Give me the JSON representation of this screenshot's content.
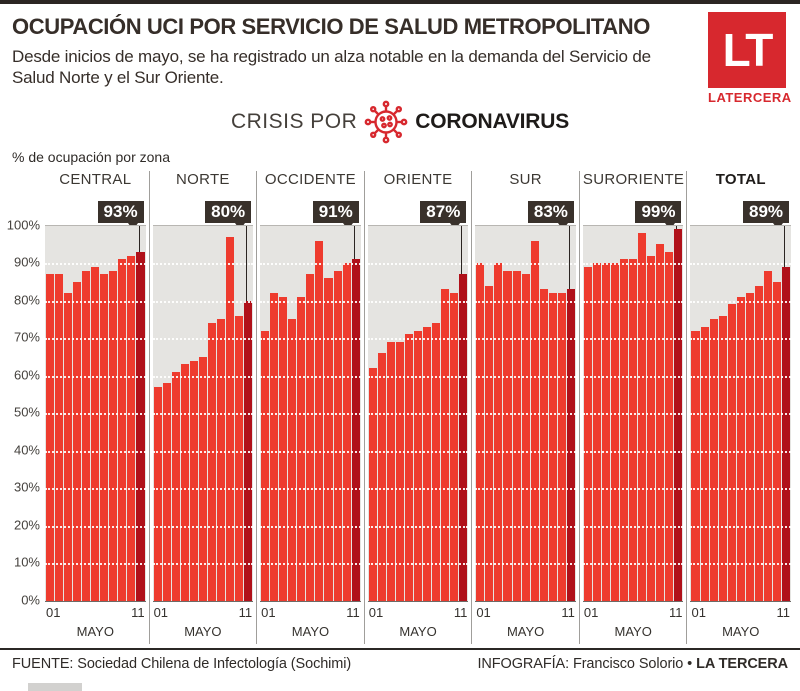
{
  "colors": {
    "bar": "#ee3b2e",
    "bar_final": "#b0111a",
    "badge_bg": "#39312b",
    "plot_bg": "#e5e4e1",
    "logo_red": "#d7282e",
    "text_dark": "#362e29"
  },
  "header": {
    "title": "OCUPACIÓN UCI POR SERVICIO DE SALUD METROPOLITANO",
    "subtitle": "Desde inicios de mayo, se ha registrado un alza notable en la demanda del Servicio de Salud Norte y el Sur Oriente.",
    "logo_text": "LT",
    "logo_caption": "LATERCERA"
  },
  "banner": {
    "light": "CRISIS POR",
    "bold": "CORONAVIRUS",
    "icon": "virus-icon"
  },
  "axis_note": "% de ocupación por zona",
  "y_ticks": [
    "100%",
    "90%",
    "80%",
    "70%",
    "60%",
    "50%",
    "40%",
    "30%",
    "20%",
    "10%",
    "0%"
  ],
  "x_axis": {
    "first": "01",
    "last": "11",
    "month": "MAYO"
  },
  "footer": {
    "source": "FUENTE: Sociedad Chilena de Infectología (Sochimi)",
    "credit": "INFOGRAFÍA: Francisco Solorio • ",
    "credit_bold": "LA TERCERA"
  },
  "chart_data": {
    "type": "bar",
    "x": [
      1,
      2,
      3,
      4,
      5,
      6,
      7,
      8,
      9,
      10,
      11
    ],
    "x_first_label": "01",
    "x_last_label": "11",
    "xlabel": "MAYO",
    "ylabel": "% de ocupación por zona",
    "ylim": [
      0,
      100
    ],
    "grid": "white dotted horizontal every 10%",
    "legend": "none",
    "panels": [
      {
        "name": "CENTRAL",
        "bold": false,
        "final_label": "93%",
        "values": [
          87,
          87,
          82,
          85,
          88,
          89,
          87,
          88,
          91,
          92,
          93
        ]
      },
      {
        "name": "NORTE",
        "bold": false,
        "final_label": "80%",
        "values": [
          57,
          58,
          61,
          63,
          64,
          65,
          74,
          75,
          97,
          76,
          80
        ]
      },
      {
        "name": "OCCIDENTE",
        "bold": false,
        "final_label": "91%",
        "values": [
          72,
          82,
          81,
          75,
          81,
          87,
          96,
          86,
          88,
          90,
          91
        ]
      },
      {
        "name": "ORIENTE",
        "bold": false,
        "final_label": "87%",
        "values": [
          62,
          66,
          69,
          69,
          71,
          72,
          73,
          74,
          83,
          82,
          87
        ]
      },
      {
        "name": "SUR",
        "bold": false,
        "final_label": "83%",
        "values": [
          90,
          84,
          90,
          88,
          88,
          87,
          96,
          83,
          82,
          82,
          83
        ]
      },
      {
        "name": "SURORIENTE",
        "bold": false,
        "final_label": "99%",
        "values": [
          89,
          90,
          90,
          90,
          91,
          91,
          98,
          92,
          95,
          93,
          99
        ]
      },
      {
        "name": "TOTAL",
        "bold": true,
        "final_label": "89%",
        "values": [
          72,
          73,
          75,
          76,
          79,
          81,
          82,
          84,
          88,
          85,
          89
        ]
      }
    ]
  }
}
